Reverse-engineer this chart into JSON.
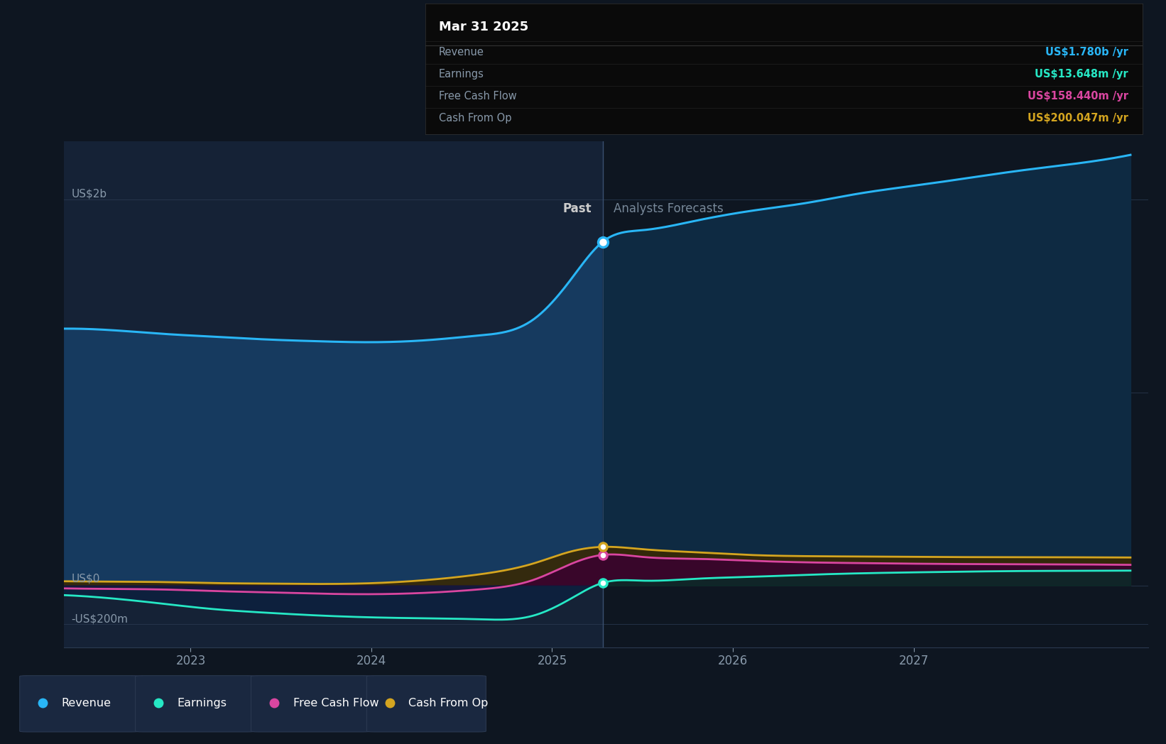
{
  "bg_color": "#0e1621",
  "past_bg_color": "#152236",
  "forecast_bg_color": "#0e1621",
  "ylabel_2b": "US$2b",
  "ylabel_0": "US$0",
  "ylabel_neg200": "-US$200m",
  "x_min": 2022.3,
  "x_max": 2028.3,
  "y_min": -320,
  "y_max": 2300,
  "divider_x": 2025.28,
  "past_label": "Past",
  "forecast_label": "Analysts Forecasts",
  "x_ticks": [
    2023,
    2024,
    2025,
    2026,
    2027
  ],
  "tooltip_title": "Mar 31 2025",
  "revenue_color": "#29b6f6",
  "earnings_color": "#26e8c5",
  "fcf_color": "#d946a0",
  "cashfromop_color": "#d4a520",
  "revenue_label": "Revenue",
  "earnings_label": "Earnings",
  "fcf_label": "Free Cash Flow",
  "cashfromop_label": "Cash From Op",
  "tooltip_revenue_val": "US$1.780b",
  "tooltip_earnings_val": "US$13.648m",
  "tooltip_fcf_val": "US$158.440m",
  "tooltip_cashfromop_val": "US$200.047m",
  "revenue_x": [
    2022.3,
    2022.6,
    2022.9,
    2023.1,
    2023.4,
    2023.7,
    2024.0,
    2024.3,
    2024.6,
    2024.9,
    2025.1,
    2025.28,
    2025.5,
    2025.8,
    2026.1,
    2026.4,
    2026.7,
    2027.0,
    2027.3,
    2027.6,
    2027.9,
    2028.2
  ],
  "revenue_y": [
    1330,
    1320,
    1300,
    1290,
    1275,
    1265,
    1260,
    1270,
    1295,
    1380,
    1580,
    1780,
    1840,
    1890,
    1940,
    1980,
    2030,
    2070,
    2110,
    2150,
    2185,
    2230
  ],
  "earnings_x": [
    2022.3,
    2022.6,
    2022.9,
    2023.1,
    2023.4,
    2023.7,
    2024.0,
    2024.3,
    2024.6,
    2024.9,
    2025.1,
    2025.28,
    2025.5,
    2025.8,
    2026.1,
    2026.4,
    2026.7,
    2027.0,
    2027.3,
    2027.6,
    2027.9,
    2028.2
  ],
  "earnings_y": [
    -50,
    -70,
    -100,
    -120,
    -140,
    -155,
    -165,
    -170,
    -175,
    -155,
    -70,
    13.6,
    25,
    35,
    45,
    55,
    63,
    68,
    72,
    75,
    76,
    77
  ],
  "fcf_x": [
    2022.3,
    2022.6,
    2022.9,
    2023.1,
    2023.4,
    2023.7,
    2024.0,
    2024.3,
    2024.6,
    2024.9,
    2025.1,
    2025.28,
    2025.5,
    2025.8,
    2026.1,
    2026.4,
    2026.7,
    2027.0,
    2027.3,
    2027.6,
    2027.9,
    2028.2
  ],
  "fcf_y": [
    -15,
    -18,
    -22,
    -28,
    -35,
    -42,
    -45,
    -38,
    -20,
    30,
    110,
    158.4,
    148,
    138,
    128,
    120,
    116,
    113,
    111,
    110,
    109,
    107
  ],
  "cashfromop_x": [
    2022.3,
    2022.6,
    2022.9,
    2023.1,
    2023.4,
    2023.7,
    2024.0,
    2024.3,
    2024.6,
    2024.9,
    2025.1,
    2025.28,
    2025.5,
    2025.8,
    2026.1,
    2026.4,
    2026.7,
    2027.0,
    2027.3,
    2027.6,
    2027.9,
    2028.2
  ],
  "cashfromop_y": [
    22,
    20,
    17,
    13,
    10,
    8,
    12,
    28,
    58,
    115,
    175,
    200.0,
    188,
    172,
    158,
    152,
    150,
    148,
    147,
    147,
    146,
    145
  ]
}
